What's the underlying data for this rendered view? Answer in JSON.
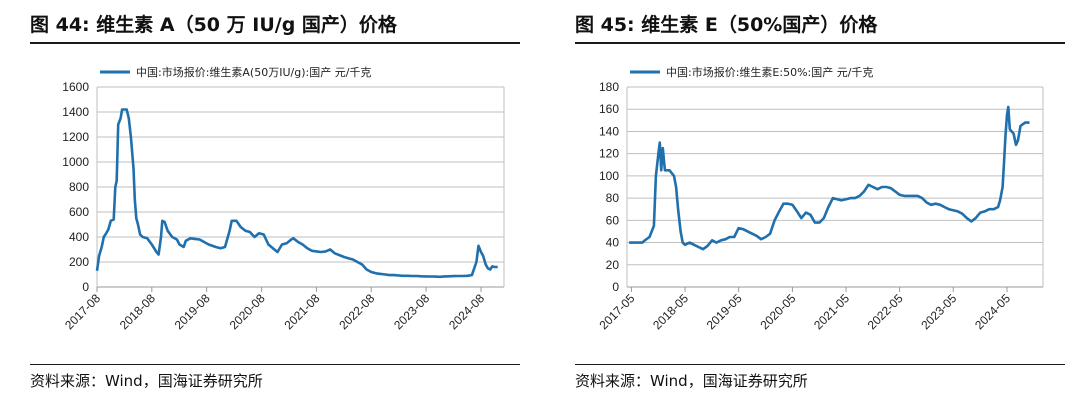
{
  "colors": {
    "line": "#1f70ad",
    "axis": "#bfbfbf"
  },
  "panels": [
    {
      "title": "图 44:  维生素 A（50 万 IU/g 国产）价格",
      "source": "资料来源：Wind，国海证券研究所",
      "chart_data": {
        "type": "line",
        "legend": {
          "label": "中国:市场报价:维生素A(50万IU/g):国产  元/千克",
          "position": "top-left"
        },
        "ylim": [
          0,
          1600
        ],
        "yticks": [
          0,
          200,
          400,
          600,
          800,
          1000,
          1200,
          1400,
          1600
        ],
        "xlim": [
          "2017-08",
          "2025-01"
        ],
        "xticks": [
          "2017-08",
          "2018-08",
          "2019-08",
          "2020-08",
          "2021-08",
          "2022-08",
          "2023-08",
          "2024-08"
        ],
        "grid": "horizontal",
        "series": [
          {
            "name": "中国:市场报价:维生素A(50万IU/g):国产  元/千克",
            "points": [
              [
                "2017-08-01",
                130
              ],
              [
                "2017-08-15",
                250
              ],
              [
                "2017-09-01",
                320
              ],
              [
                "2017-09-15",
                400
              ],
              [
                "2017-10-01",
                430
              ],
              [
                "2017-10-15",
                460
              ],
              [
                "2017-11-01",
                530
              ],
              [
                "2017-11-20",
                540
              ],
              [
                "2017-12-01",
                800
              ],
              [
                "2017-12-10",
                850
              ],
              [
                "2017-12-20",
                1300
              ],
              [
                "2018-01-05",
                1350
              ],
              [
                "2018-01-15",
                1420
              ],
              [
                "2018-02-15",
                1420
              ],
              [
                "2018-03-01",
                1350
              ],
              [
                "2018-03-15",
                1200
              ],
              [
                "2018-04-01",
                950
              ],
              [
                "2018-04-10",
                700
              ],
              [
                "2018-04-20",
                550
              ],
              [
                "2018-05-01",
                500
              ],
              [
                "2018-05-15",
                420
              ],
              [
                "2018-06-01",
                400
              ],
              [
                "2018-07-01",
                390
              ],
              [
                "2018-08-01",
                340
              ],
              [
                "2018-09-01",
                280
              ],
              [
                "2018-09-15",
                260
              ],
              [
                "2018-10-01",
                400
              ],
              [
                "2018-10-10",
                530
              ],
              [
                "2018-10-25",
                520
              ],
              [
                "2018-11-15",
                450
              ],
              [
                "2018-12-15",
                400
              ],
              [
                "2019-01-15",
                380
              ],
              [
                "2019-02-01",
                340
              ],
              [
                "2019-03-01",
                320
              ],
              [
                "2019-03-15",
                370
              ],
              [
                "2019-04-15",
                390
              ],
              [
                "2019-05-15",
                385
              ],
              [
                "2019-06-15",
                380
              ],
              [
                "2019-07-15",
                360
              ],
              [
                "2019-08-15",
                340
              ],
              [
                "2019-10-01",
                320
              ],
              [
                "2019-11-01",
                310
              ],
              [
                "2019-12-01",
                320
              ],
              [
                "2020-01-01",
                450
              ],
              [
                "2020-01-15",
                530
              ],
              [
                "2020-02-15",
                530
              ],
              [
                "2020-03-15",
                480
              ],
              [
                "2020-04-15",
                450
              ],
              [
                "2020-05-15",
                440
              ],
              [
                "2020-06-15",
                400
              ],
              [
                "2020-07-15",
                430
              ],
              [
                "2020-08-15",
                420
              ],
              [
                "2020-09-15",
                340
              ],
              [
                "2020-10-15",
                310
              ],
              [
                "2020-11-15",
                280
              ],
              [
                "2020-12-15",
                340
              ],
              [
                "2021-01-15",
                350
              ],
              [
                "2021-02-15",
                380
              ],
              [
                "2021-03-01",
                390
              ],
              [
                "2021-04-01",
                360
              ],
              [
                "2021-05-01",
                340
              ],
              [
                "2021-06-01",
                310
              ],
              [
                "2021-07-01",
                290
              ],
              [
                "2021-08-01",
                285
              ],
              [
                "2021-09-01",
                280
              ],
              [
                "2021-10-01",
                285
              ],
              [
                "2021-11-01",
                300
              ],
              [
                "2021-12-01",
                270
              ],
              [
                "2022-01-01",
                255
              ],
              [
                "2022-02-01",
                240
              ],
              [
                "2022-03-01",
                230
              ],
              [
                "2022-04-01",
                220
              ],
              [
                "2022-05-01",
                200
              ],
              [
                "2022-06-01",
                180
              ],
              [
                "2022-07-01",
                140
              ],
              [
                "2022-08-01",
                120
              ],
              [
                "2022-09-01",
                110
              ],
              [
                "2022-10-01",
                105
              ],
              [
                "2022-11-01",
                100
              ],
              [
                "2022-12-01",
                95
              ],
              [
                "2023-01-01",
                95
              ],
              [
                "2023-02-01",
                92
              ],
              [
                "2023-03-01",
                90
              ],
              [
                "2023-04-01",
                90
              ],
              [
                "2023-05-01",
                88
              ],
              [
                "2023-06-01",
                88
              ],
              [
                "2023-07-01",
                86
              ],
              [
                "2023-08-01",
                85
              ],
              [
                "2023-09-01",
                84
              ],
              [
                "2023-10-01",
                83
              ],
              [
                "2023-11-01",
                82
              ],
              [
                "2023-12-01",
                85
              ],
              [
                "2024-01-01",
                86
              ],
              [
                "2024-02-01",
                87
              ],
              [
                "2024-03-01",
                88
              ],
              [
                "2024-04-01",
                88
              ],
              [
                "2024-05-01",
                90
              ],
              [
                "2024-06-01",
                95
              ],
              [
                "2024-07-01",
                200
              ],
              [
                "2024-07-15",
                330
              ],
              [
                "2024-08-01",
                280
              ],
              [
                "2024-08-15",
                250
              ],
              [
                "2024-09-01",
                180
              ],
              [
                "2024-09-15",
                150
              ],
              [
                "2024-10-01",
                140
              ],
              [
                "2024-10-15",
                165
              ],
              [
                "2024-11-01",
                160
              ],
              [
                "2024-11-20",
                160
              ]
            ]
          }
        ]
      }
    },
    {
      "title": "图 45:  维生素 E（50%国产）价格",
      "source": "资料来源：Wind，国海证券研究所",
      "chart_data": {
        "type": "line",
        "legend": {
          "label": "中国:市场报价:维生素E:50%:国产  元/千克",
          "position": "top-left"
        },
        "ylim": [
          0,
          180
        ],
        "yticks": [
          0,
          20,
          40,
          60,
          80,
          100,
          120,
          140,
          160,
          180
        ],
        "xlim": [
          "2017-04",
          "2025-01"
        ],
        "xticks": [
          "2017-05",
          "2018-05",
          "2019-05",
          "2020-05",
          "2021-05",
          "2022-05",
          "2023-05",
          "2024-05"
        ],
        "grid": "horizontal",
        "series": [
          {
            "name": "中国:市场报价:维生素E:50%:国产  元/千克",
            "points": [
              [
                "2017-04-15",
                40
              ],
              [
                "2017-06-01",
                40
              ],
              [
                "2017-07-15",
                40
              ],
              [
                "2017-08-01",
                42
              ],
              [
                "2017-09-01",
                45
              ],
              [
                "2017-10-01",
                55
              ],
              [
                "2017-10-15",
                100
              ],
              [
                "2017-11-01",
                120
              ],
              [
                "2017-11-10",
                130
              ],
              [
                "2017-11-20",
                105
              ],
              [
                "2017-12-01",
                125
              ],
              [
                "2017-12-15",
                105
              ],
              [
                "2018-01-15",
                105
              ],
              [
                "2018-02-15",
                100
              ],
              [
                "2018-03-01",
                90
              ],
              [
                "2018-03-15",
                70
              ],
              [
                "2018-04-01",
                50
              ],
              [
                "2018-04-15",
                40
              ],
              [
                "2018-05-01",
                38
              ],
              [
                "2018-06-01",
                40
              ],
              [
                "2018-07-01",
                38
              ],
              [
                "2018-08-01",
                36
              ],
              [
                "2018-09-01",
                34
              ],
              [
                "2018-10-01",
                37
              ],
              [
                "2018-11-01",
                42
              ],
              [
                "2018-12-01",
                40
              ],
              [
                "2019-01-01",
                42
              ],
              [
                "2019-02-01",
                43
              ],
              [
                "2019-03-01",
                45
              ],
              [
                "2019-04-01",
                45
              ],
              [
                "2019-05-01",
                53
              ],
              [
                "2019-06-01",
                52
              ],
              [
                "2019-07-01",
                50
              ],
              [
                "2019-08-01",
                48
              ],
              [
                "2019-09-01",
                46
              ],
              [
                "2019-10-01",
                43
              ],
              [
                "2019-11-01",
                45
              ],
              [
                "2019-12-01",
                48
              ],
              [
                "2020-01-01",
                60
              ],
              [
                "2020-02-01",
                68
              ],
              [
                "2020-03-01",
                75
              ],
              [
                "2020-04-01",
                75
              ],
              [
                "2020-05-01",
                74
              ],
              [
                "2020-06-01",
                68
              ],
              [
                "2020-07-01",
                62
              ],
              [
                "2020-08-01",
                67
              ],
              [
                "2020-09-01",
                65
              ],
              [
                "2020-10-01",
                58
              ],
              [
                "2020-11-01",
                58
              ],
              [
                "2020-12-01",
                62
              ],
              [
                "2021-01-01",
                72
              ],
              [
                "2021-02-01",
                80
              ],
              [
                "2021-03-01",
                79
              ],
              [
                "2021-04-01",
                78
              ],
              [
                "2021-05-01",
                79
              ],
              [
                "2021-06-01",
                80
              ],
              [
                "2021-07-01",
                80
              ],
              [
                "2021-08-01",
                82
              ],
              [
                "2021-09-01",
                86
              ],
              [
                "2021-10-01",
                92
              ],
              [
                "2021-11-01",
                90
              ],
              [
                "2021-12-01",
                88
              ],
              [
                "2022-01-01",
                90
              ],
              [
                "2022-02-01",
                90
              ],
              [
                "2022-03-01",
                89
              ],
              [
                "2022-04-01",
                86
              ],
              [
                "2022-05-01",
                83
              ],
              [
                "2022-06-01",
                82
              ],
              [
                "2022-07-01",
                82
              ],
              [
                "2022-08-01",
                82
              ],
              [
                "2022-09-01",
                82
              ],
              [
                "2022-10-01",
                80
              ],
              [
                "2022-11-01",
                76
              ],
              [
                "2022-12-01",
                74
              ],
              [
                "2023-01-01",
                75
              ],
              [
                "2023-02-01",
                74
              ],
              [
                "2023-03-01",
                72
              ],
              [
                "2023-04-01",
                70
              ],
              [
                "2023-05-01",
                69
              ],
              [
                "2023-06-01",
                68
              ],
              [
                "2023-07-01",
                66
              ],
              [
                "2023-08-01",
                62
              ],
              [
                "2023-09-01",
                59
              ],
              [
                "2023-10-01",
                62
              ],
              [
                "2023-11-01",
                67
              ],
              [
                "2023-12-01",
                68
              ],
              [
                "2024-01-01",
                70
              ],
              [
                "2024-02-01",
                70
              ],
              [
                "2024-03-01",
                72
              ],
              [
                "2024-03-15",
                78
              ],
              [
                "2024-04-01",
                90
              ],
              [
                "2024-04-10",
                110
              ],
              [
                "2024-04-20",
                135
              ],
              [
                "2024-05-01",
                155
              ],
              [
                "2024-05-10",
                162
              ],
              [
                "2024-05-20",
                142
              ],
              [
                "2024-06-01",
                140
              ],
              [
                "2024-06-15",
                138
              ],
              [
                "2024-07-01",
                128
              ],
              [
                "2024-07-15",
                132
              ],
              [
                "2024-08-01",
                145
              ],
              [
                "2024-09-01",
                148
              ],
              [
                "2024-10-01",
                148
              ]
            ]
          }
        ]
      }
    }
  ]
}
